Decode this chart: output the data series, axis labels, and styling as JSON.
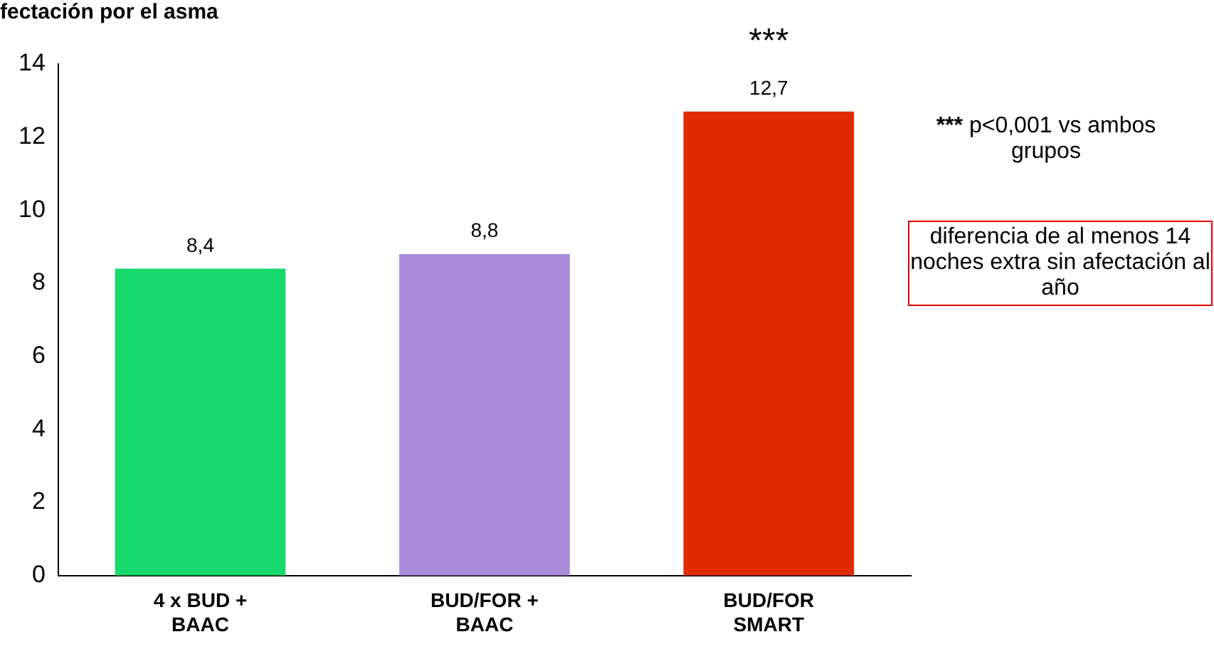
{
  "chart_data": {
    "type": "bar",
    "title": "fectación por el asma",
    "categories": [
      "4 x BUD + BAAC",
      "BUD/FOR + BAAC",
      "BUD/FOR SMART"
    ],
    "values": [
      8.4,
      8.8,
      12.7
    ],
    "colors": [
      "#17d86c",
      "#a88ad8",
      "#e02a00"
    ],
    "value_labels": [
      "8,4",
      "8,8",
      "12,7"
    ],
    "ylim": [
      0,
      14
    ],
    "yticks": [
      0,
      2,
      4,
      6,
      8,
      10,
      12,
      14
    ],
    "grid": false,
    "legend": false,
    "annotations": [
      "***",
      "*** p<0,001 vs ambos grupos",
      "diferencia de al menos 14 noches extra sin afectación al año"
    ]
  }
}
